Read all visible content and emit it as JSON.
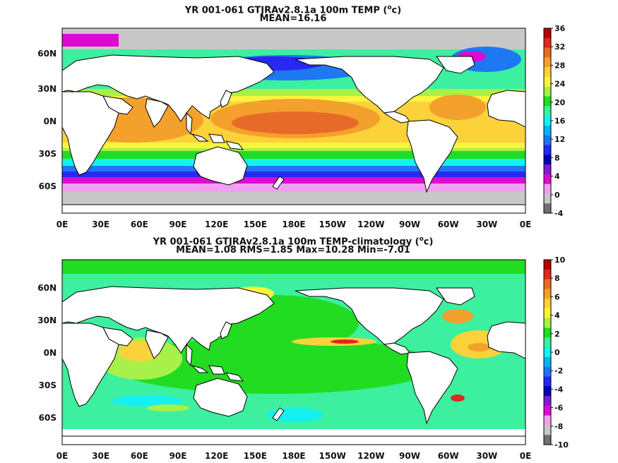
{
  "panels": [
    {
      "title_main": "YR 001-061 GTJRAv2.8.1a 100m TEMP (",
      "title_unit": "o",
      "title_unit_tail": "c)",
      "subtitle": "MEAN=16.16",
      "lat_labels": [
        "60N",
        "30N",
        "0N",
        "30S",
        "60S"
      ],
      "lon_labels": [
        "0E",
        "30E",
        "60E",
        "90E",
        "120E",
        "150E",
        "180E",
        "150W",
        "120W",
        "90W",
        "60W",
        "30W",
        "0E"
      ],
      "colorbar_labels": [
        "36",
        "32",
        "28",
        "24",
        "20",
        "16",
        "12",
        "8",
        "4",
        "0",
        "-4"
      ],
      "colorbar_colors": [
        "#b40000",
        "#e0281e",
        "#e86a28",
        "#f4a02c",
        "#fbd23a",
        "#f8f53c",
        "#a8f04a",
        "#22dc22",
        "#3cf0a0",
        "#16f0f0",
        "#0ab4f4",
        "#1e78f4",
        "#2828f0",
        "#0000b4",
        "#7c1ec8",
        "#dc0ad2",
        "#f0a0f0",
        "#c8c8c8",
        "#707070"
      ]
    },
    {
      "title_main": "YR 001-061 GTJRAv2.8.1a 100m TEMP-climatology (",
      "title_unit": "o",
      "title_unit_tail": "c)",
      "subtitle": "MEAN=1.08   RMS=1.85   Max=10.28   Min=-7.01",
      "lat_labels": [
        "60N",
        "30N",
        "0N",
        "30S",
        "60S"
      ],
      "lon_labels": [
        "0E",
        "30E",
        "60E",
        "90E",
        "120E",
        "150E",
        "180E",
        "150W",
        "120W",
        "90W",
        "60W",
        "30W",
        "0E"
      ],
      "colorbar_labels": [
        "10",
        "8",
        "6",
        "4",
        "2",
        "0",
        "-2",
        "-4",
        "-6",
        "-8",
        "-10"
      ],
      "colorbar_colors": [
        "#b40000",
        "#e0281e",
        "#e86a28",
        "#f4a02c",
        "#fbd23a",
        "#f8f53c",
        "#a8f04a",
        "#22dc22",
        "#3cf0a0",
        "#16f0f0",
        "#0ab4f4",
        "#1e78f4",
        "#2828f0",
        "#0000b4",
        "#7c1ec8",
        "#dc0ad2",
        "#f0a0f0",
        "#c8c8c8",
        "#707070"
      ]
    }
  ]
}
